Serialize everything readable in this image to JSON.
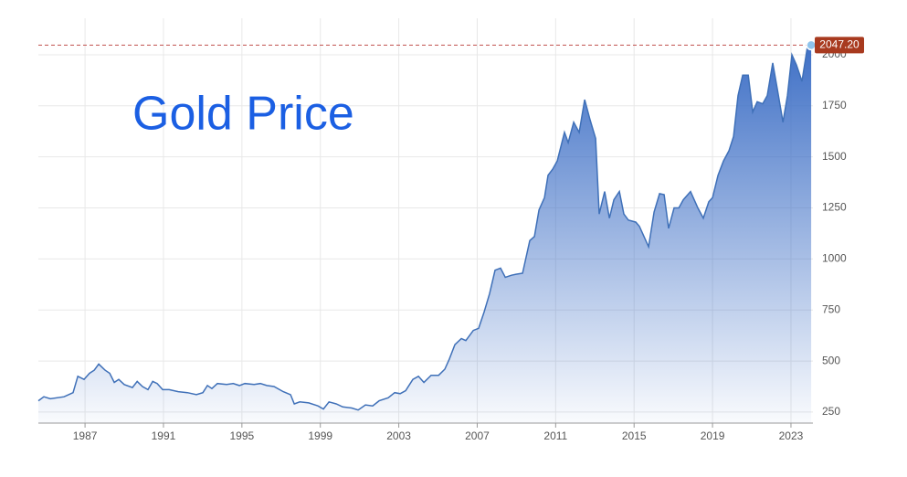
{
  "chart_data": {
    "type": "area",
    "title": "Gold Price",
    "color": "#3f70b8",
    "grid": true,
    "x": [
      1984.62,
      1984.9,
      1985.23,
      1985.93,
      1986.39,
      1986.63,
      1986.95,
      1987.23,
      1987.47,
      1987.7,
      1988.02,
      1988.26,
      1988.49,
      1988.72,
      1989.0,
      1989.42,
      1989.66,
      1989.93,
      1990.21,
      1990.45,
      1990.68,
      1990.96,
      1991.29,
      1991.75,
      1992.22,
      1992.68,
      1993.01,
      1993.24,
      1993.47,
      1993.75,
      1994.22,
      1994.55,
      1994.87,
      1995.15,
      1995.62,
      1995.94,
      1996.27,
      1996.64,
      1997.11,
      1997.48,
      1997.67,
      1997.95,
      1998.41,
      1998.88,
      1999.16,
      1999.44,
      1999.81,
      2000.14,
      2000.6,
      2000.93,
      2001.3,
      2001.67,
      2002.0,
      2002.46,
      2002.79,
      2003.07,
      2003.35,
      2003.72,
      2004.0,
      2004.28,
      2004.65,
      2005.03,
      2005.35,
      2005.58,
      2005.86,
      2006.19,
      2006.42,
      2006.8,
      2007.07,
      2007.35,
      2007.63,
      2007.91,
      2008.19,
      2008.43,
      2008.75,
      2008.98,
      2009.31,
      2009.68,
      2009.92,
      2010.15,
      2010.43,
      2010.61,
      2010.85,
      2011.08,
      2011.45,
      2011.64,
      2011.92,
      2012.2,
      2012.48,
      2012.76,
      2013.04,
      2013.22,
      2013.5,
      2013.74,
      2013.97,
      2014.25,
      2014.48,
      2014.71,
      2015.09,
      2015.27,
      2015.74,
      2016.02,
      2016.3,
      2016.53,
      2016.76,
      2017.04,
      2017.28,
      2017.51,
      2017.88,
      2018.25,
      2018.53,
      2018.81,
      2019.0,
      2019.28,
      2019.56,
      2019.84,
      2020.07,
      2020.3,
      2020.54,
      2020.82,
      2021.05,
      2021.28,
      2021.56,
      2021.79,
      2022.07,
      2022.31,
      2022.59,
      2022.82,
      2023.05,
      2023.28,
      2023.56,
      2023.84,
      2024.03
    ],
    "values": [
      305,
      325,
      315,
      325,
      345,
      425,
      410,
      440,
      455,
      485,
      455,
      440,
      395,
      410,
      385,
      370,
      400,
      375,
      360,
      400,
      390,
      360,
      360,
      350,
      345,
      335,
      345,
      380,
      365,
      390,
      385,
      390,
      380,
      390,
      385,
      390,
      380,
      375,
      350,
      335,
      290,
      300,
      295,
      280,
      265,
      300,
      290,
      275,
      270,
      260,
      285,
      280,
      305,
      320,
      345,
      340,
      355,
      410,
      425,
      395,
      430,
      430,
      460,
      510,
      580,
      610,
      600,
      650,
      660,
      740,
      830,
      945,
      955,
      910,
      920,
      925,
      930,
      1090,
      1110,
      1240,
      1300,
      1410,
      1440,
      1480,
      1620,
      1570,
      1670,
      1620,
      1780,
      1680,
      1590,
      1220,
      1330,
      1200,
      1290,
      1330,
      1220,
      1190,
      1180,
      1160,
      1060,
      1230,
      1320,
      1315,
      1150,
      1250,
      1250,
      1290,
      1330,
      1250,
      1200,
      1280,
      1300,
      1410,
      1480,
      1530,
      1600,
      1800,
      1900,
      1900,
      1720,
      1770,
      1760,
      1800,
      1960,
      1830,
      1670,
      1800,
      2000,
      1950,
      1870,
      2040,
      2047.2
    ],
    "xlim": [
      1984.62,
      2024.12
    ],
    "xticks": [
      1987,
      1991,
      1995,
      1999,
      2003,
      2007,
      2011,
      2015,
      2019,
      2023
    ],
    "ylim": [
      196,
      2134
    ],
    "yticks": [
      250,
      500,
      750,
      1000,
      1250,
      1500,
      1750,
      2000
    ],
    "reference_line": {
      "value": 2047.2,
      "label": "2047.20"
    }
  }
}
